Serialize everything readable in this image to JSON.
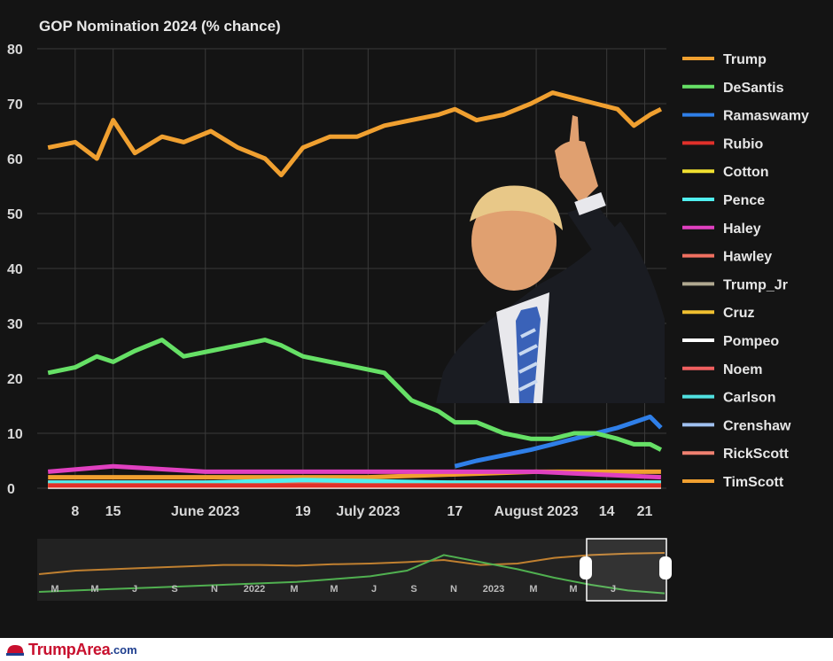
{
  "chart_data": {
    "type": "line",
    "title": "GOP Nomination 2024 (% chance)",
    "xlabel": "",
    "ylabel": "",
    "ylim": [
      0,
      80
    ],
    "yticks": [
      "0",
      "10",
      "20",
      "30",
      "40",
      "50",
      "60",
      "70",
      "80"
    ],
    "xticks": [
      "8",
      "15",
      "June 2023",
      "19",
      "July 2023",
      "17",
      "August 2023",
      "14",
      "21"
    ],
    "x_dates": [
      "2023-05-08",
      "2023-05-15",
      "2023-06-01",
      "2023-06-19",
      "2023-07-01",
      "2023-07-17",
      "2023-08-01",
      "2023-08-14",
      "2023-08-21"
    ],
    "grid": true,
    "legend_position": "right",
    "legend": [
      "Trump",
      "DeSantis",
      "Ramaswamy",
      "Rubio",
      "Cotton",
      "Pence",
      "Haley",
      "Hawley",
      "Trump_Jr",
      "Cruz",
      "Pompeo",
      "Noem",
      "Carlson",
      "Crenshaw",
      "RickScott",
      "TimScott"
    ],
    "series": [
      {
        "name": "Trump",
        "color": "#f0a030",
        "x": [
          "2023-05-03",
          "2023-05-08",
          "2023-05-12",
          "2023-05-15",
          "2023-05-19",
          "2023-05-24",
          "2023-05-28",
          "2023-06-02",
          "2023-06-07",
          "2023-06-12",
          "2023-06-15",
          "2023-06-19",
          "2023-06-24",
          "2023-06-29",
          "2023-07-04",
          "2023-07-09",
          "2023-07-14",
          "2023-07-17",
          "2023-07-21",
          "2023-07-26",
          "2023-07-31",
          "2023-08-04",
          "2023-08-08",
          "2023-08-12",
          "2023-08-16",
          "2023-08-19",
          "2023-08-22",
          "2023-08-24"
        ],
        "values": [
          62,
          63,
          60,
          67,
          61,
          64,
          63,
          65,
          62,
          60,
          57,
          62,
          64,
          64,
          66,
          67,
          68,
          69,
          67,
          68,
          70,
          72,
          71,
          70,
          69,
          66,
          68,
          69
        ]
      },
      {
        "name": "DeSantis",
        "color": "#66e066",
        "x": [
          "2023-05-03",
          "2023-05-08",
          "2023-05-12",
          "2023-05-15",
          "2023-05-19",
          "2023-05-24",
          "2023-05-28",
          "2023-06-02",
          "2023-06-07",
          "2023-06-12",
          "2023-06-15",
          "2023-06-19",
          "2023-06-24",
          "2023-06-29",
          "2023-07-04",
          "2023-07-09",
          "2023-07-14",
          "2023-07-17",
          "2023-07-21",
          "2023-07-26",
          "2023-07-31",
          "2023-08-04",
          "2023-08-08",
          "2023-08-12",
          "2023-08-16",
          "2023-08-19",
          "2023-08-22",
          "2023-08-24"
        ],
        "values": [
          21,
          22,
          24,
          23,
          25,
          27,
          24,
          25,
          26,
          27,
          26,
          24,
          23,
          22,
          21,
          16,
          14,
          12,
          12,
          10,
          9,
          9,
          10,
          10,
          9,
          8,
          8,
          7
        ]
      },
      {
        "name": "Ramaswamy",
        "color": "#2f7fe8",
        "x": [
          "2023-07-17",
          "2023-07-21",
          "2023-07-26",
          "2023-07-31",
          "2023-08-04",
          "2023-08-08",
          "2023-08-12",
          "2023-08-16",
          "2023-08-19",
          "2023-08-22",
          "2023-08-24"
        ],
        "values": [
          4,
          5,
          6,
          7,
          8,
          9,
          10,
          11,
          12,
          13,
          11
        ]
      },
      {
        "name": "Rubio",
        "color": "#e0302a",
        "x": [
          "2023-05-03",
          "2023-08-24"
        ],
        "values": [
          0.5,
          0.5
        ]
      },
      {
        "name": "Cotton",
        "color": "#f0e030",
        "x": [
          "2023-05-03",
          "2023-08-24"
        ],
        "values": [
          0.5,
          0.5
        ]
      },
      {
        "name": "Pence",
        "color": "#50f0f0",
        "x": [
          "2023-05-03",
          "2023-06-01",
          "2023-06-19",
          "2023-07-17",
          "2023-08-24"
        ],
        "values": [
          1,
          1,
          1.5,
          1,
          1
        ]
      },
      {
        "name": "Haley",
        "color": "#e040c0",
        "x": [
          "2023-05-03",
          "2023-05-15",
          "2023-06-01",
          "2023-07-01",
          "2023-08-01",
          "2023-08-24"
        ],
        "values": [
          3,
          4,
          3,
          3,
          3,
          2
        ]
      },
      {
        "name": "Hawley",
        "color": "#f07060",
        "x": [
          "2023-05-03",
          "2023-08-24"
        ],
        "values": [
          0.5,
          0.5
        ]
      },
      {
        "name": "Trump_Jr",
        "color": "#b0a890",
        "x": [
          "2023-05-03",
          "2023-08-24"
        ],
        "values": [
          0.5,
          0.5
        ]
      },
      {
        "name": "Cruz",
        "color": "#f0c030",
        "x": [
          "2023-05-03",
          "2023-08-24"
        ],
        "values": [
          0.5,
          0.5
        ]
      },
      {
        "name": "Pompeo",
        "color": "#ffffff",
        "x": [
          "2023-05-03",
          "2023-08-24"
        ],
        "values": [
          0.3,
          0.3
        ]
      },
      {
        "name": "Noem",
        "color": "#f06060",
        "x": [
          "2023-05-03",
          "2023-08-24"
        ],
        "values": [
          1,
          1
        ]
      },
      {
        "name": "Carlson",
        "color": "#50e0e0",
        "x": [
          "2023-05-03",
          "2023-08-24"
        ],
        "values": [
          1,
          1
        ]
      },
      {
        "name": "Crenshaw",
        "color": "#a0c0f0",
        "x": [
          "2023-05-03",
          "2023-08-24"
        ],
        "values": [
          0.3,
          0.3
        ]
      },
      {
        "name": "RickScott",
        "color": "#f08070",
        "x": [
          "2023-05-03",
          "2023-08-24"
        ],
        "values": [
          0.3,
          0.3
        ]
      },
      {
        "name": "TimScott",
        "color": "#f0a030",
        "x": [
          "2023-05-03",
          "2023-06-01",
          "2023-07-01",
          "2023-08-01",
          "2023-08-24"
        ],
        "values": [
          2,
          2,
          2,
          3,
          3
        ]
      }
    ],
    "navigator": {
      "ticks": [
        "M",
        "M",
        "J",
        "S",
        "N",
        "2022",
        "M",
        "M",
        "J",
        "S",
        "N",
        "2023",
        "M",
        "M",
        "J"
      ],
      "series": [
        {
          "name": "Trump",
          "color": "#c08030",
          "values": [
            35,
            40,
            42,
            44,
            46,
            48,
            48,
            47,
            49,
            50,
            52,
            55,
            48,
            50,
            58,
            62,
            64,
            65
          ]
        },
        {
          "name": "DeSantis",
          "color": "#50b050",
          "values": [
            10,
            12,
            14,
            16,
            18,
            20,
            22,
            24,
            28,
            32,
            40,
            62,
            52,
            42,
            30,
            20,
            12,
            8
          ]
        }
      ]
    }
  },
  "footer": {
    "brand": "TrumpArea",
    "domain": ".com"
  }
}
